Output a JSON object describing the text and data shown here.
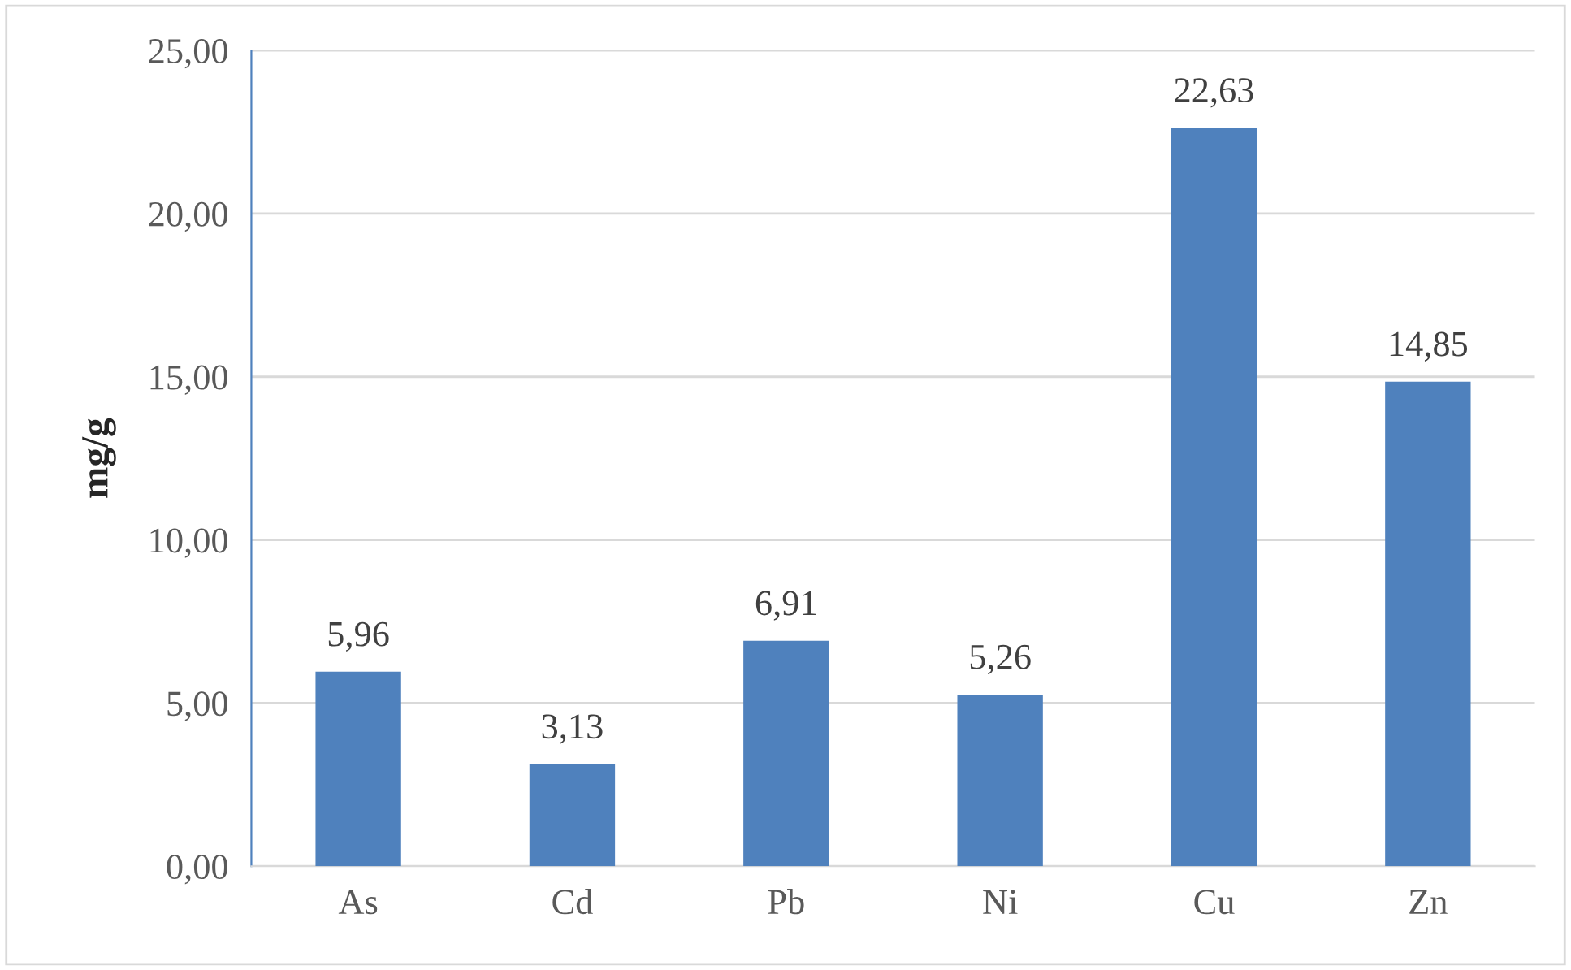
{
  "chart_data": {
    "type": "bar",
    "ylabel": "mg/g",
    "categories": [
      "As",
      "Cd",
      "Pb",
      "Ni",
      "Cu",
      "Zn"
    ],
    "values": [
      5.96,
      3.13,
      6.91,
      5.26,
      22.63,
      14.85
    ],
    "value_labels": [
      "5,96",
      "3,13",
      "6,91",
      "5,26",
      "22,63",
      "14,85"
    ],
    "color": "#4f81bd",
    "ylim": [
      0,
      25
    ],
    "yticks": [
      {
        "value": 0,
        "label": "0,00"
      },
      {
        "value": 5,
        "label": "5,00"
      },
      {
        "value": 10,
        "label": "10,00"
      },
      {
        "value": 15,
        "label": "15,00"
      },
      {
        "value": 20,
        "label": "20,00"
      },
      {
        "value": 25,
        "label": "25,00"
      }
    ],
    "grid": "y"
  }
}
